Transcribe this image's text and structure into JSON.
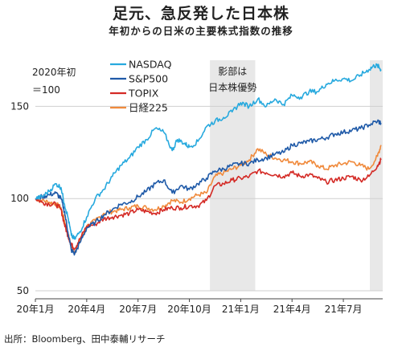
{
  "chart_data": {
    "type": "line",
    "title": "足元、急反発した日本株",
    "subtitle": "年初からの日米の主要株式指数の推移",
    "note_lines": [
      "2020年初",
      "＝100"
    ],
    "source": "出所：Bloomberg、田中泰輔リサーチ",
    "x_unit": "months since 2020-01-01",
    "xlim": [
      0,
      20.3
    ],
    "ylim": [
      50,
      175
    ],
    "yticks": [
      50,
      100,
      150
    ],
    "xticks": [
      {
        "x": 0,
        "label": "20年1月"
      },
      {
        "x": 3,
        "label": "20年4月"
      },
      {
        "x": 6,
        "label": "20年7月"
      },
      {
        "x": 9,
        "label": "20年10月"
      },
      {
        "x": 12,
        "label": "21年1月"
      },
      {
        "x": 15,
        "label": "21年4月"
      },
      {
        "x": 18,
        "label": "21年7月"
      }
    ],
    "grid": true,
    "shaded_regions": [
      {
        "x0": 10.2,
        "x1": 12.85,
        "label_lines": [
          "影部は",
          "日本株優勢"
        ]
      },
      {
        "x0": 19.55,
        "x1": 20.3,
        "label_lines": []
      }
    ],
    "legend_position": "top-left",
    "series": [
      {
        "name": "NASDAQ",
        "color": "#27a9de",
        "x": [
          0,
          0.4,
          0.8,
          1.2,
          1.5,
          1.7,
          1.9,
          2.1,
          2.3,
          2.6,
          3,
          3.5,
          4,
          4.5,
          5,
          5.5,
          6,
          6.5,
          7,
          7.5,
          8,
          8.3,
          8.7,
          9,
          9.5,
          10,
          10.5,
          11,
          11.5,
          12,
          12.5,
          13,
          13.5,
          14,
          14.5,
          15,
          15.5,
          16,
          16.5,
          17,
          17.5,
          18,
          18.5,
          19,
          19.5,
          19.8,
          20,
          20.2
        ],
        "y": [
          100,
          101,
          104,
          108,
          106,
          97,
          90,
          80,
          78,
          82,
          90,
          100,
          105,
          112,
          118,
          122,
          128,
          132,
          138,
          136,
          126,
          132,
          130,
          128,
          131,
          139,
          142,
          144,
          147,
          152,
          150,
          154,
          150,
          154,
          151,
          156,
          155,
          158,
          158,
          162,
          164,
          165,
          164,
          167,
          170,
          172,
          172,
          170
        ]
      },
      {
        "name": "S&P500",
        "color": "#1f5aa8",
        "x": [
          0,
          0.4,
          0.8,
          1.2,
          1.5,
          1.7,
          1.9,
          2.1,
          2.3,
          2.6,
          3,
          3.5,
          4,
          4.5,
          5,
          5.5,
          6,
          6.5,
          7,
          7.5,
          8,
          8.5,
          9,
          9.5,
          10,
          10.5,
          11,
          11.5,
          12,
          12.5,
          13,
          13.5,
          14,
          14.5,
          15,
          15.5,
          16,
          16.5,
          17,
          17.5,
          18,
          18.5,
          19,
          19.5,
          20,
          20.2
        ],
        "y": [
          100,
          101,
          102,
          103,
          100,
          93,
          82,
          72,
          70,
          76,
          84,
          87,
          91,
          94,
          97,
          98,
          101,
          104,
          108,
          110,
          103,
          107,
          105,
          108,
          111,
          115,
          116,
          118,
          119,
          119,
          121,
          122,
          124,
          125,
          129,
          130,
          131,
          132,
          133,
          135,
          136,
          137,
          138,
          140,
          142,
          141
        ]
      },
      {
        "name": "TOPIX",
        "color": "#d42a25",
        "x": [
          0,
          0.4,
          0.8,
          1.2,
          1.5,
          1.7,
          1.9,
          2.1,
          2.3,
          2.6,
          3,
          3.5,
          4,
          4.5,
          5,
          5.5,
          6,
          6.5,
          7,
          7.5,
          8,
          8.5,
          9,
          9.5,
          10,
          10.5,
          11,
          11.5,
          12,
          12.5,
          13,
          13.5,
          14,
          14.5,
          15,
          15.5,
          16,
          16.5,
          17,
          17.5,
          18,
          18.5,
          19,
          19.5,
          20,
          20.2
        ],
        "y": [
          100,
          98,
          97,
          97,
          94,
          86,
          80,
          75,
          73,
          78,
          85,
          86,
          89,
          90,
          91,
          92,
          94,
          93,
          92,
          94,
          95,
          95,
          96,
          96,
          99,
          107,
          108,
          110,
          111,
          112,
          115,
          114,
          113,
          112,
          114,
          112,
          113,
          111,
          109,
          110,
          111,
          112,
          110,
          112,
          118,
          121
        ]
      },
      {
        "name": "日経225",
        "color": "#f08a3c",
        "x": [
          0,
          0.4,
          0.8,
          1.2,
          1.5,
          1.7,
          1.9,
          2.1,
          2.3,
          2.6,
          3,
          3.5,
          4,
          4.5,
          5,
          5.5,
          6,
          6.5,
          7,
          7.5,
          8,
          8.5,
          9,
          9.5,
          10,
          10.5,
          11,
          11.5,
          12,
          12.5,
          13,
          13.5,
          14,
          14.5,
          15,
          15.5,
          16,
          16.5,
          17,
          17.5,
          18,
          18.5,
          19,
          19.5,
          20,
          20.2
        ],
        "y": [
          100,
          99,
          98,
          97,
          95,
          88,
          81,
          74,
          71,
          77,
          85,
          88,
          92,
          93,
          94,
          95,
          96,
          95,
          94,
          96,
          99,
          98,
          100,
          102,
          103,
          112,
          114,
          116,
          118,
          121,
          127,
          124,
          122,
          121,
          120,
          119,
          120,
          118,
          116,
          118,
          119,
          120,
          118,
          116,
          123,
          129
        ]
      }
    ]
  }
}
